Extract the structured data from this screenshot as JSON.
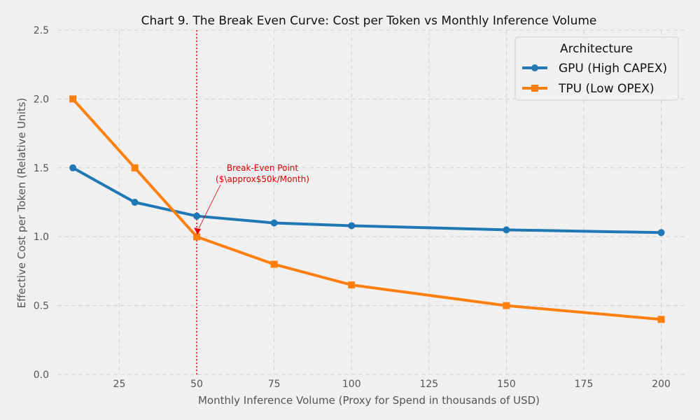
{
  "chart_data": {
    "type": "line",
    "title": "Chart 9. The Break Even Curve: Cost per Token vs Monthly Inference Volume",
    "xlabel": "Monthly Inference Volume (Proxy for Spend in thousands of USD)",
    "ylabel": "Effective Cost per Token (Relative Units)",
    "xlim": [
      5,
      208
    ],
    "ylim": [
      0,
      2.5
    ],
    "xticks": [
      25,
      50,
      75,
      100,
      125,
      150,
      175,
      200
    ],
    "yticks": [
      0.0,
      0.5,
      1.0,
      1.5,
      2.0,
      2.5
    ],
    "xtick_labels": [
      "25",
      "50",
      "75",
      "100",
      "125",
      "150",
      "175",
      "200"
    ],
    "ytick_labels": [
      "0.0",
      "0.5",
      "1.0",
      "1.5",
      "2.0",
      "2.5"
    ],
    "grid": true,
    "legend": {
      "title": "Architecture",
      "placement": "top-right"
    },
    "series": [
      {
        "name": "GPU (High CAPEX)",
        "color": "#1f77b4",
        "marker": "circle",
        "x": [
          10,
          30,
          50,
          75,
          100,
          150,
          200
        ],
        "y": [
          1.5,
          1.25,
          1.15,
          1.1,
          1.08,
          1.05,
          1.03
        ]
      },
      {
        "name": "TPU (Low OPEX)",
        "color": "#ff7f0e",
        "marker": "square",
        "x": [
          10,
          30,
          50,
          75,
          100,
          150,
          200
        ],
        "y": [
          2.0,
          1.5,
          1.0,
          0.8,
          0.65,
          0.5,
          0.4
        ]
      }
    ],
    "vline": {
      "x": 50,
      "color": "#e00000",
      "style": "dotted"
    },
    "annotation": {
      "lines": [
        "Break-Even Point",
        "($\\approx$50k/Month)"
      ],
      "target": [
        50,
        1.0
      ],
      "color": "#e00000"
    }
  }
}
